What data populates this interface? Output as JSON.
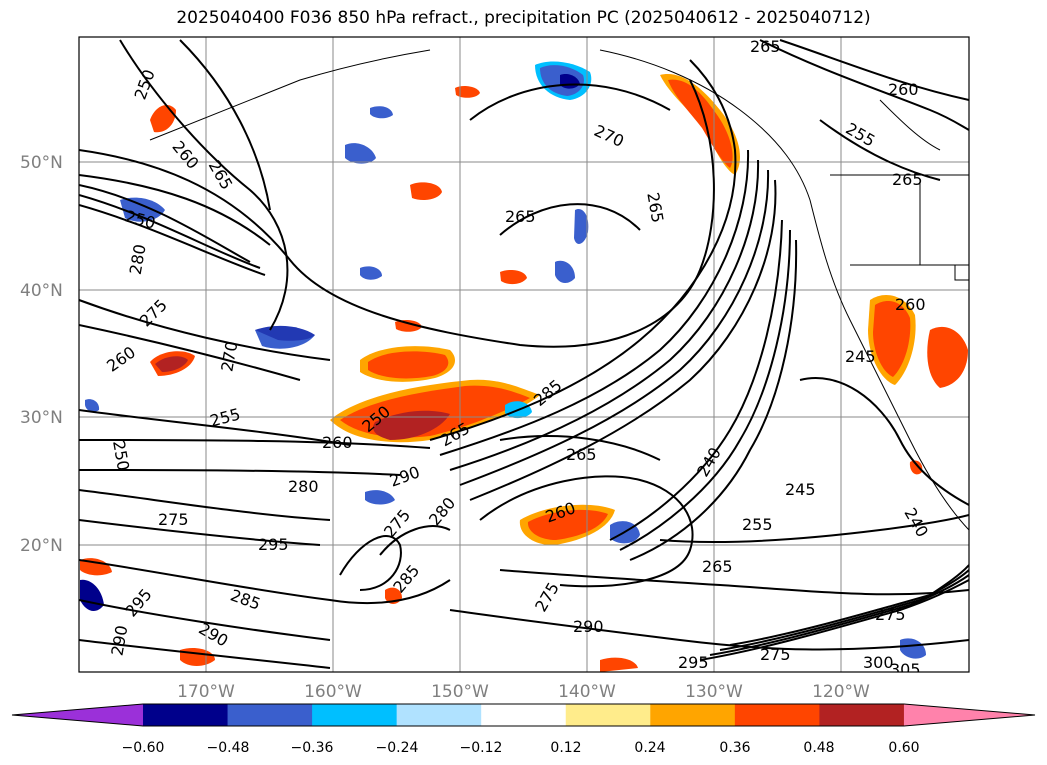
{
  "title": "2025040400 F036 850 hPa refract., precipitation PC (2025040612 - 2025040712)",
  "axes": {
    "lat_labels": [
      "50°N",
      "40°N",
      "30°N",
      "20°N"
    ],
    "lon_labels": [
      "170°W",
      "160°W",
      "150°W",
      "140°W",
      "130°W",
      "120°W"
    ]
  },
  "colorbar": {
    "tick_labels": [
      "−0.60",
      "−0.48",
      "−0.36",
      "−0.24",
      "−0.12",
      "0.12",
      "0.24",
      "0.36",
      "0.48",
      "0.60"
    ],
    "colors": [
      "#9b30d9",
      "#00008b",
      "#3a5fcd",
      "#00bfff",
      "#b0e2ff",
      "#ffffff",
      "#ffec8b",
      "#ffa500",
      "#ff4500",
      "#b22222",
      "#ff82ab"
    ],
    "extend": "both"
  },
  "contour_labels": [
    {
      "text": "250"
    },
    {
      "text": "260"
    },
    {
      "text": "265"
    },
    {
      "text": "270"
    },
    {
      "text": "265"
    },
    {
      "text": "265"
    },
    {
      "text": "250"
    },
    {
      "text": "280"
    },
    {
      "text": "275"
    },
    {
      "text": "260"
    },
    {
      "text": "270"
    },
    {
      "text": "255"
    },
    {
      "text": "250"
    },
    {
      "text": "260"
    },
    {
      "text": "250"
    },
    {
      "text": "265"
    },
    {
      "text": "285"
    },
    {
      "text": "280"
    },
    {
      "text": "290"
    },
    {
      "text": "280"
    },
    {
      "text": "275"
    },
    {
      "text": "295"
    },
    {
      "text": "285"
    },
    {
      "text": "290"
    },
    {
      "text": "275"
    },
    {
      "text": "260"
    },
    {
      "text": "265"
    },
    {
      "text": "240"
    },
    {
      "text": "245"
    },
    {
      "text": "255"
    },
    {
      "text": "265"
    },
    {
      "text": "275"
    },
    {
      "text": "290"
    },
    {
      "text": "295"
    },
    {
      "text": "300"
    },
    {
      "text": "305"
    },
    {
      "text": "275"
    },
    {
      "text": "265"
    },
    {
      "text": "255"
    },
    {
      "text": "260"
    },
    {
      "text": "265"
    },
    {
      "text": "260"
    },
    {
      "text": "245"
    },
    {
      "text": "240"
    },
    {
      "text": "275"
    },
    {
      "text": "285"
    },
    {
      "text": "295"
    },
    {
      "text": "290"
    }
  ]
}
